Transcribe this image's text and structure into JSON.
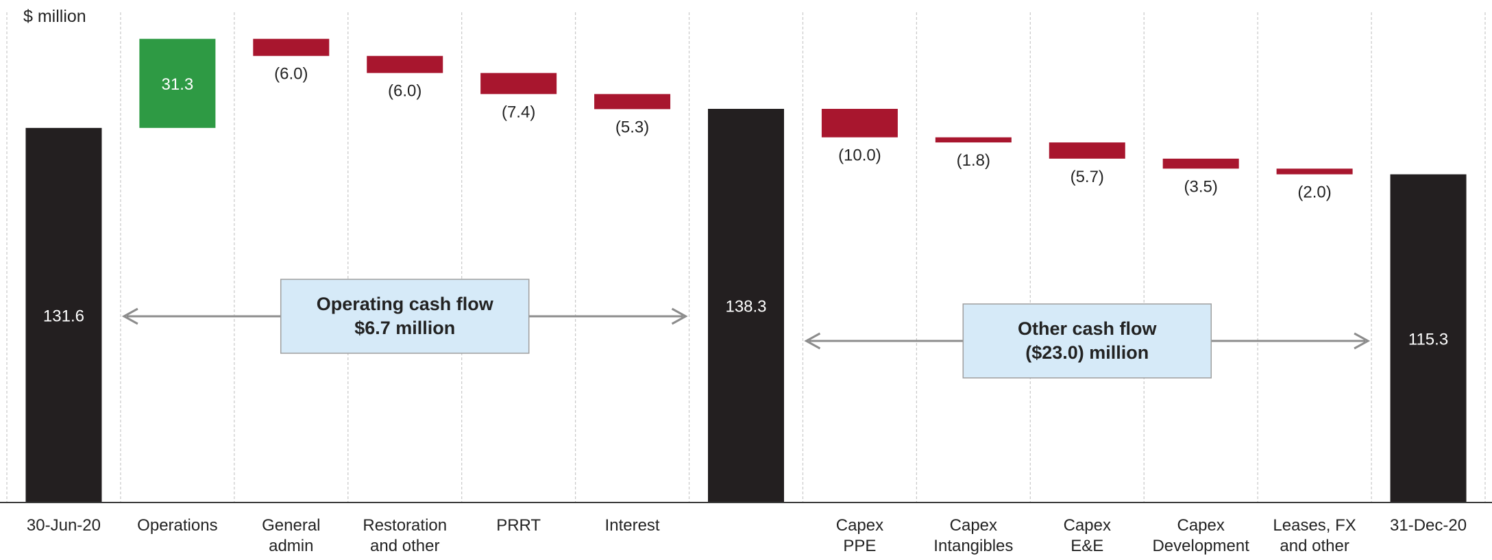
{
  "chart_data": {
    "type": "waterfall",
    "unit_label": "$ million",
    "colors": {
      "total": "#231f20",
      "increase": "#2e9a44",
      "decrease": "#a8162e",
      "box_fill": "#d6eaf8",
      "box_border": "#9e9e9e",
      "arrow": "#8c8c8c",
      "gridline": "#c8c8c8",
      "axis": "#3a3a3a"
    },
    "categories": [
      {
        "label": [
          "30-Jun-20"
        ],
        "kind": "total",
        "value": 131.6,
        "display": "131.6"
      },
      {
        "label": [
          "Operations"
        ],
        "kind": "increase",
        "value": 31.3,
        "display": "31.3"
      },
      {
        "label": [
          "General",
          "admin"
        ],
        "kind": "decrease",
        "value": -6.0,
        "display": "(6.0)"
      },
      {
        "label": [
          "Restoration",
          "and other"
        ],
        "kind": "decrease",
        "value": -6.0,
        "display": "(6.0)"
      },
      {
        "label": [
          "PRRT"
        ],
        "kind": "decrease",
        "value": -7.4,
        "display": "(7.4)"
      },
      {
        "label": [
          "Interest"
        ],
        "kind": "decrease",
        "value": -5.3,
        "display": "(5.3)"
      },
      {
        "label": [],
        "kind": "total",
        "value": 138.3,
        "display": "138.3"
      },
      {
        "label": [
          "Capex",
          "PPE"
        ],
        "kind": "decrease",
        "value": -10.0,
        "display": "(10.0)"
      },
      {
        "label": [
          "Capex",
          "Intangibles"
        ],
        "kind": "decrease",
        "value": -1.8,
        "display": "(1.8)"
      },
      {
        "label": [
          "Capex",
          "E&E"
        ],
        "kind": "decrease",
        "value": -5.7,
        "display": "(5.7)"
      },
      {
        "label": [
          "Capex",
          "Development"
        ],
        "kind": "decrease",
        "value": -3.5,
        "display": "(3.5)"
      },
      {
        "label": [
          "Leases, FX",
          "and other"
        ],
        "kind": "decrease",
        "value": -2.0,
        "display": "(2.0)"
      },
      {
        "label": [
          "31-Dec-20"
        ],
        "kind": "total",
        "value": 115.3,
        "display": "115.3"
      }
    ],
    "annotations": [
      {
        "lines": [
          "Operating cash flow",
          "$6.7 million"
        ],
        "from_index": 1,
        "to_index": 5
      },
      {
        "lines": [
          "Other cash flow",
          "($23.0) million"
        ],
        "from_index": 7,
        "to_index": 11
      }
    ],
    "ylim": [
      0,
      165
    ],
    "grid": "vertical dashed separators"
  }
}
